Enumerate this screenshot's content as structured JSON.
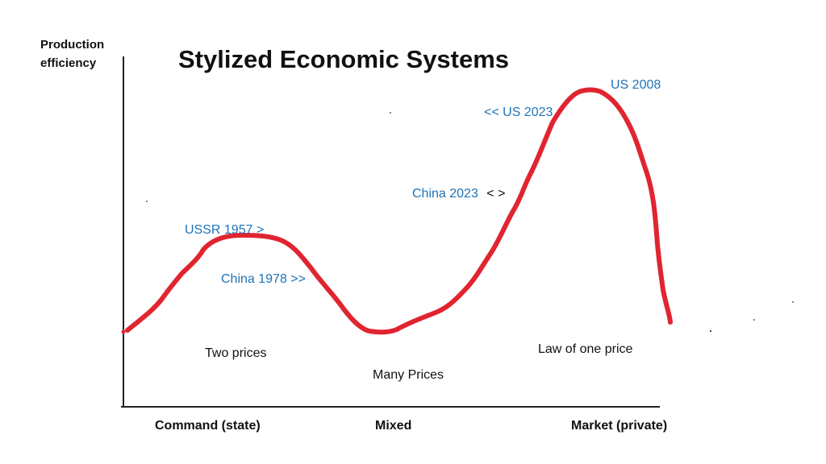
{
  "title": "Stylized Economic Systems",
  "y_axis": {
    "line1": "Production",
    "line2": "efficiency"
  },
  "x_axis": {
    "left": "Command  (state)",
    "middle": "Mixed",
    "right": "Market  (private)"
  },
  "annotations": {
    "us2008": "US 2008",
    "us2023": "<<  US 2023",
    "china2023": "China 2023",
    "china2023_arrow": "<  >",
    "ussr1957": "USSR 1957 >",
    "china1978": "China 1978  >>"
  },
  "regions": {
    "two_prices": "Two prices",
    "many_prices": "Many Prices",
    "law_of_one_price": "Law of one price"
  },
  "colors": {
    "curve": "#e02530",
    "annotation": "#1f73b7",
    "axis": "#222222"
  }
}
